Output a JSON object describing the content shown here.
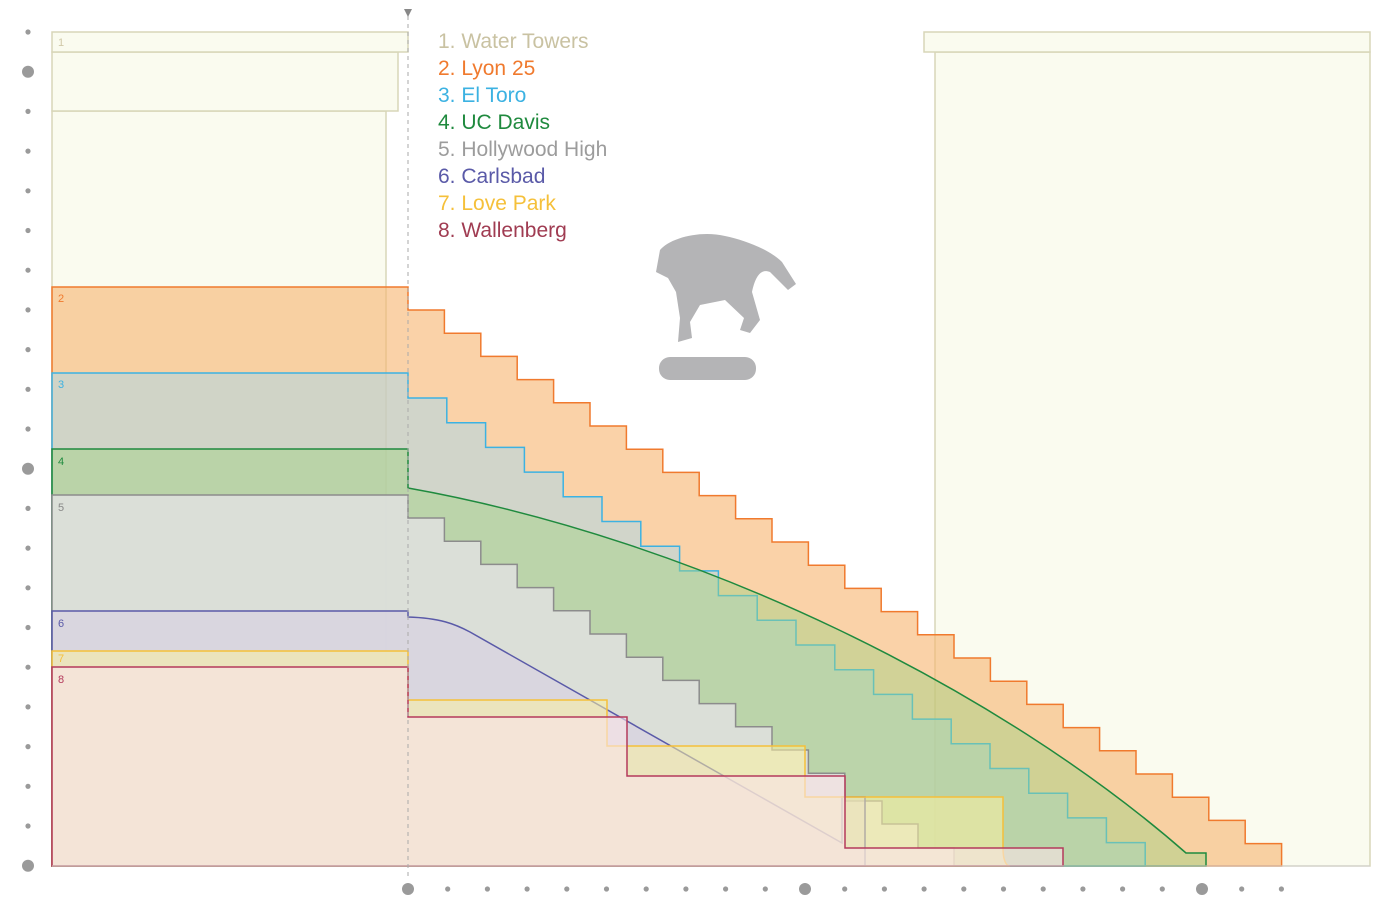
{
  "legend": [
    {
      "label": "1. Water Towers",
      "color": "#c9c2a2"
    },
    {
      "label": "2. Lyon 25",
      "color": "#f07a2e"
    },
    {
      "label": "3. El Toro",
      "color": "#3cb2e2"
    },
    {
      "label": "4. UC Davis",
      "color": "#1f8a3e"
    },
    {
      "label": "5. Hollywood High",
      "color": "#9c9c9c"
    },
    {
      "label": "6. Carlsbad",
      "color": "#5a5aa8"
    },
    {
      "label": "7. Love Park",
      "color": "#f5c03a"
    },
    {
      "label": "8. Wallenberg",
      "color": "#a03c52"
    }
  ],
  "band_labels": [
    "1",
    "2",
    "3",
    "4",
    "5",
    "6",
    "7",
    "8"
  ],
  "icons": {
    "skater": "skateboarder-silhouette-icon",
    "marker": "triangle-down-icon"
  }
}
